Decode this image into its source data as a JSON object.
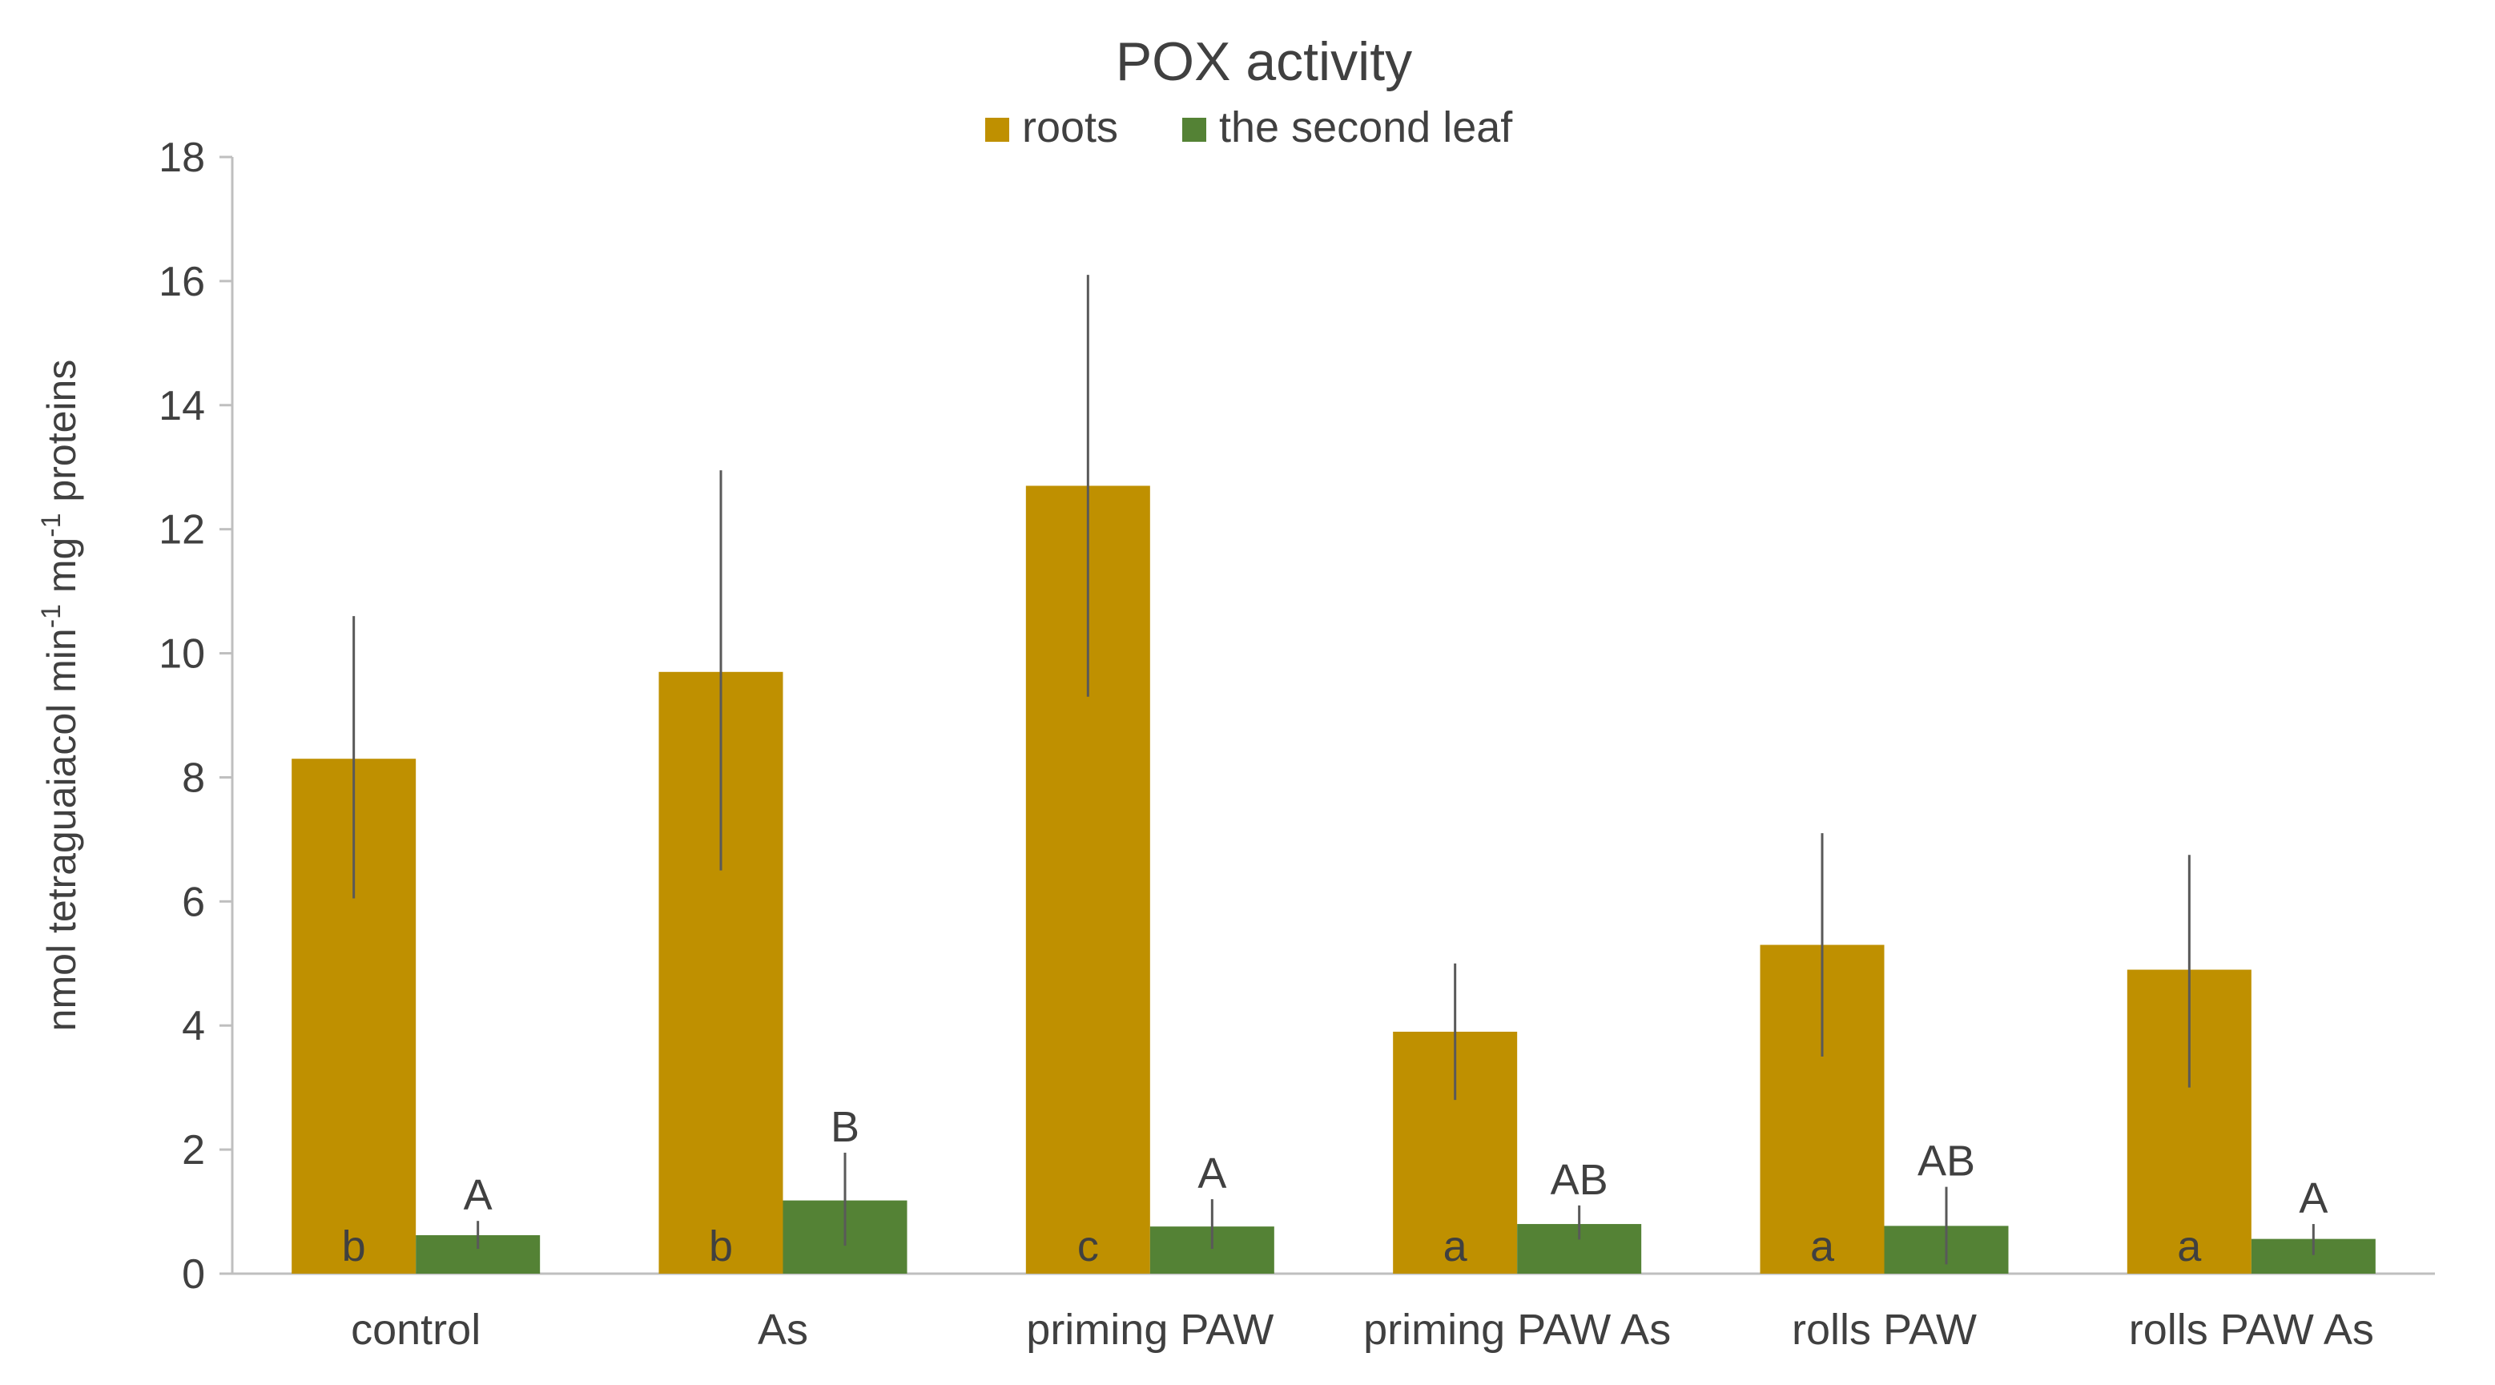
{
  "chart_data": {
    "type": "bar",
    "title": "POX activity",
    "ylabel": "nmol tetraguaiacol min-1 mg-1 proteins",
    "ylabel_parts": {
      "a": "nmol tetraguaiacol min",
      "sup1": "-1",
      "b": " mg",
      "sup2": "-1",
      "c": " proteins"
    },
    "xlabel": "",
    "ylim": [
      0,
      18
    ],
    "yticks": [
      "0",
      "2",
      "4",
      "6",
      "8",
      "10",
      "12",
      "14",
      "16",
      "18"
    ],
    "grid": false,
    "legend_position": "top-center",
    "categories": [
      "control",
      "As",
      "priming PAW",
      "priming PAW As",
      "rolls PAW",
      "rolls PAW As"
    ],
    "series": [
      {
        "name": "roots",
        "color": "#BF9000",
        "values": [
          8.3,
          9.7,
          12.7,
          3.9,
          5.3,
          4.9
        ],
        "error_low": [
          6.05,
          6.5,
          9.3,
          2.8,
          3.5,
          3.0
        ],
        "error_high": [
          10.6,
          12.95,
          16.1,
          5.0,
          7.1,
          6.75
        ],
        "labels": [
          "b",
          "b",
          "c",
          "a",
          "a",
          "a"
        ]
      },
      {
        "name": "the second leaf",
        "color": "#548235",
        "values": [
          0.62,
          1.18,
          0.76,
          0.8,
          0.77,
          0.56
        ],
        "error_low": [
          0.4,
          0.45,
          0.4,
          0.55,
          0.15,
          0.3
        ],
        "error_high": [
          0.85,
          1.95,
          1.2,
          1.1,
          1.4,
          0.8
        ],
        "labels": [
          "A",
          "B",
          "A",
          "AB",
          "AB",
          "A"
        ]
      }
    ]
  }
}
